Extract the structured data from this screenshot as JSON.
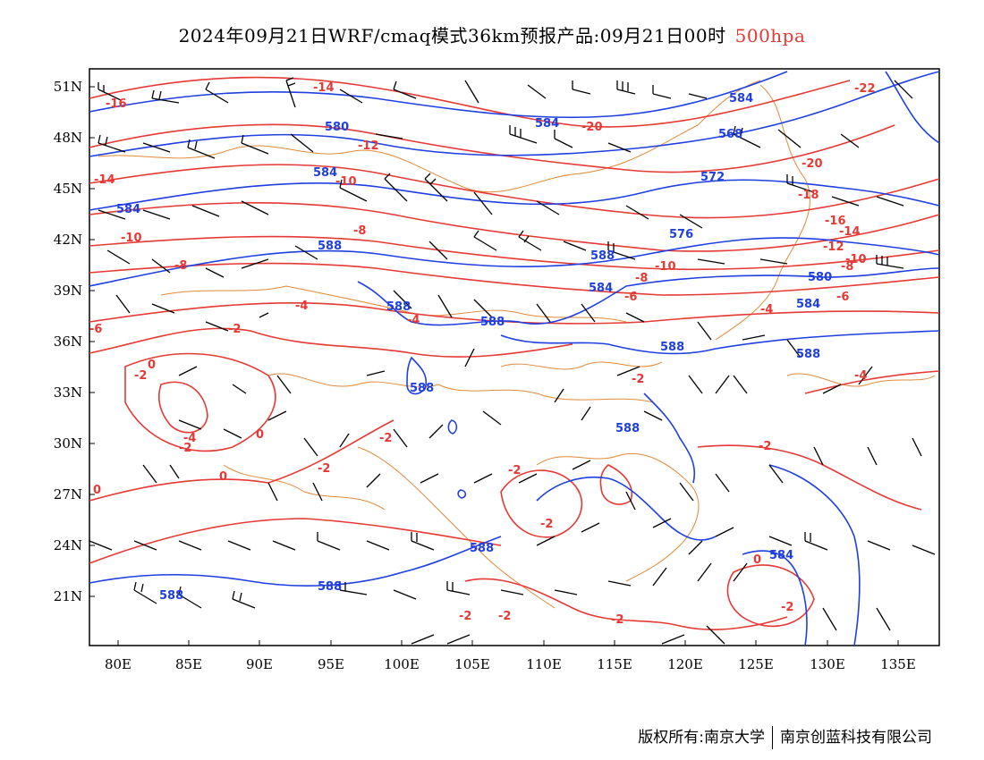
{
  "title": {
    "main": "2024年09月21日WRF/cmaq模式36km预报产品:09月21日00时",
    "level": "500hpa"
  },
  "footer": {
    "copyright": "版权所有:南京大学",
    "company": "南京创蓝科技有限公司"
  },
  "axes": {
    "x_ticks": [
      "80E",
      "85E",
      "90E",
      "95E",
      "100E",
      "105E",
      "110E",
      "115E",
      "120E",
      "125E",
      "130E",
      "135E"
    ],
    "y_ticks": [
      "51N",
      "48N",
      "45N",
      "42N",
      "39N",
      "36N",
      "33N",
      "30N",
      "27N",
      "24N",
      "21N"
    ]
  },
  "map_extent": {
    "lon": [
      78,
      138
    ],
    "lat": [
      18,
      52
    ]
  },
  "colors": {
    "geopotential_contours": "#1f3fe0",
    "temperature_contours": "#e53935",
    "borders": "#e08a3a",
    "wind_barbs": "#000000",
    "level_text": "#e53935"
  },
  "geopotential_labels": [
    "584",
    "580",
    "584",
    "584",
    "588",
    "588",
    "584",
    "576",
    "572",
    "568",
    "584",
    "588",
    "580",
    "584",
    "588",
    "588",
    "588",
    "588",
    "584",
    "588"
  ],
  "temperature_labels": [
    "-16",
    "-14",
    "-12",
    "-10",
    "-8",
    "-6",
    "-4",
    "-2",
    "0",
    "-2",
    "-20",
    "-22",
    "-20",
    "-18",
    "-16",
    "-14",
    "-12",
    "-10",
    "-8",
    "-6",
    "-4",
    "-2",
    "0",
    "-2",
    "-2",
    "-2",
    "-2",
    "-4",
    "-6",
    "-8",
    "-2",
    "-2",
    "-2",
    "-2",
    "0"
  ]
}
